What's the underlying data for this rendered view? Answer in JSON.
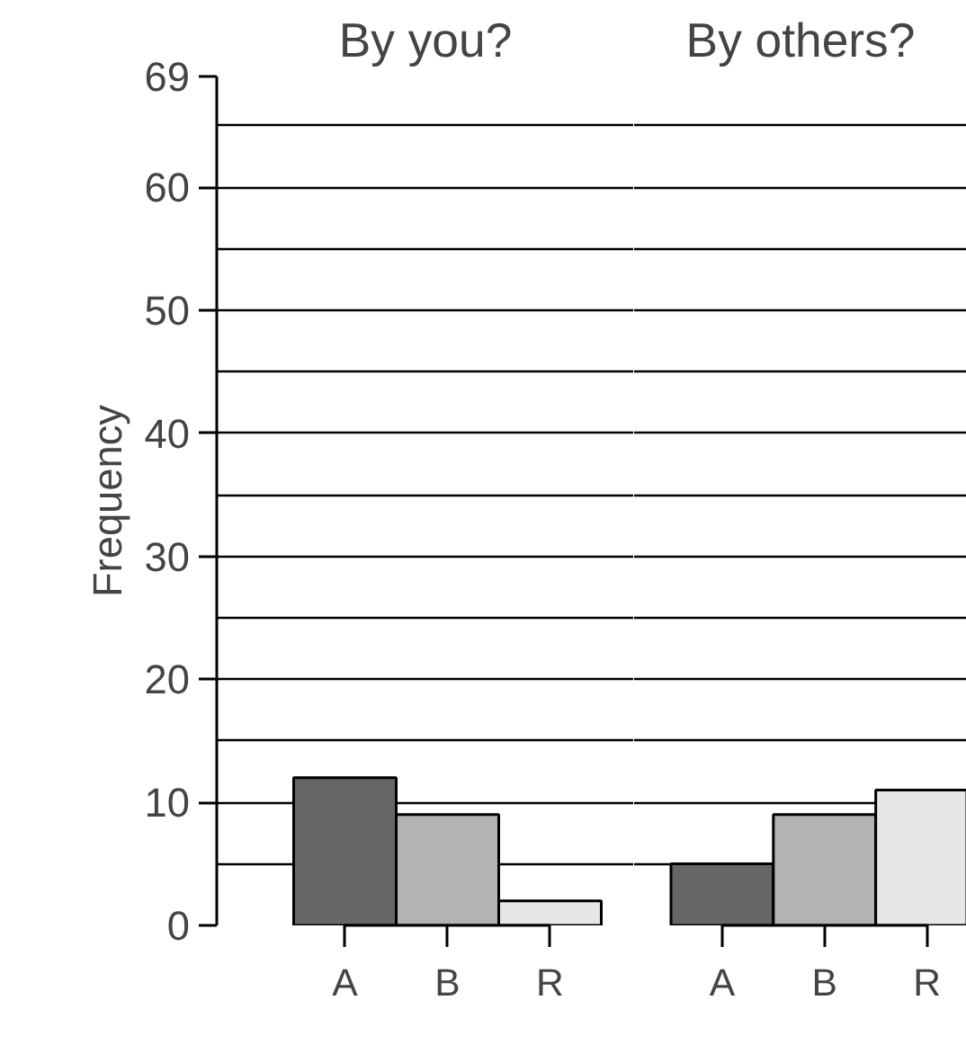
{
  "chart_data": [
    {
      "type": "bar",
      "title": "By you?",
      "ylabel": "Frequency",
      "categories": [
        "A",
        "B",
        "R"
      ],
      "values": [
        12,
        9,
        2
      ],
      "colors": [
        "#666666",
        "#b3b3b3",
        "#e6e6e6"
      ],
      "ylim": [
        0,
        69
      ],
      "yticks": [
        0,
        {
          "value": 5,
          "label": null
        },
        10,
        {
          "value": 15,
          "label": null
        },
        20,
        {
          "value": 25,
          "label": null
        },
        30,
        {
          "value": 35,
          "label": null
        },
        40,
        {
          "value": 45,
          "label": null
        },
        50,
        {
          "value": 55,
          "label": null
        },
        60,
        {
          "value": 65,
          "label": null
        },
        69
      ],
      "grid": "y"
    },
    {
      "type": "bar",
      "title": "By others?",
      "categories": [
        "A",
        "B",
        "R"
      ],
      "values": [
        5,
        9,
        11
      ],
      "colors": [
        "#666666",
        "#b3b3b3",
        "#e6e6e6"
      ],
      "ylim": [
        0,
        69
      ],
      "yticks": [
        0,
        {
          "value": 5,
          "label": null
        },
        10,
        {
          "value": 15,
          "label": null
        },
        20,
        {
          "value": 25,
          "label": null
        },
        30,
        {
          "value": 35,
          "label": null
        },
        40,
        {
          "value": 45,
          "label": null
        },
        50,
        {
          "value": 55,
          "label": null
        },
        60,
        {
          "value": 65,
          "label": null
        },
        69
      ],
      "grid": "y",
      "tick_labels": "x"
    }
  ]
}
